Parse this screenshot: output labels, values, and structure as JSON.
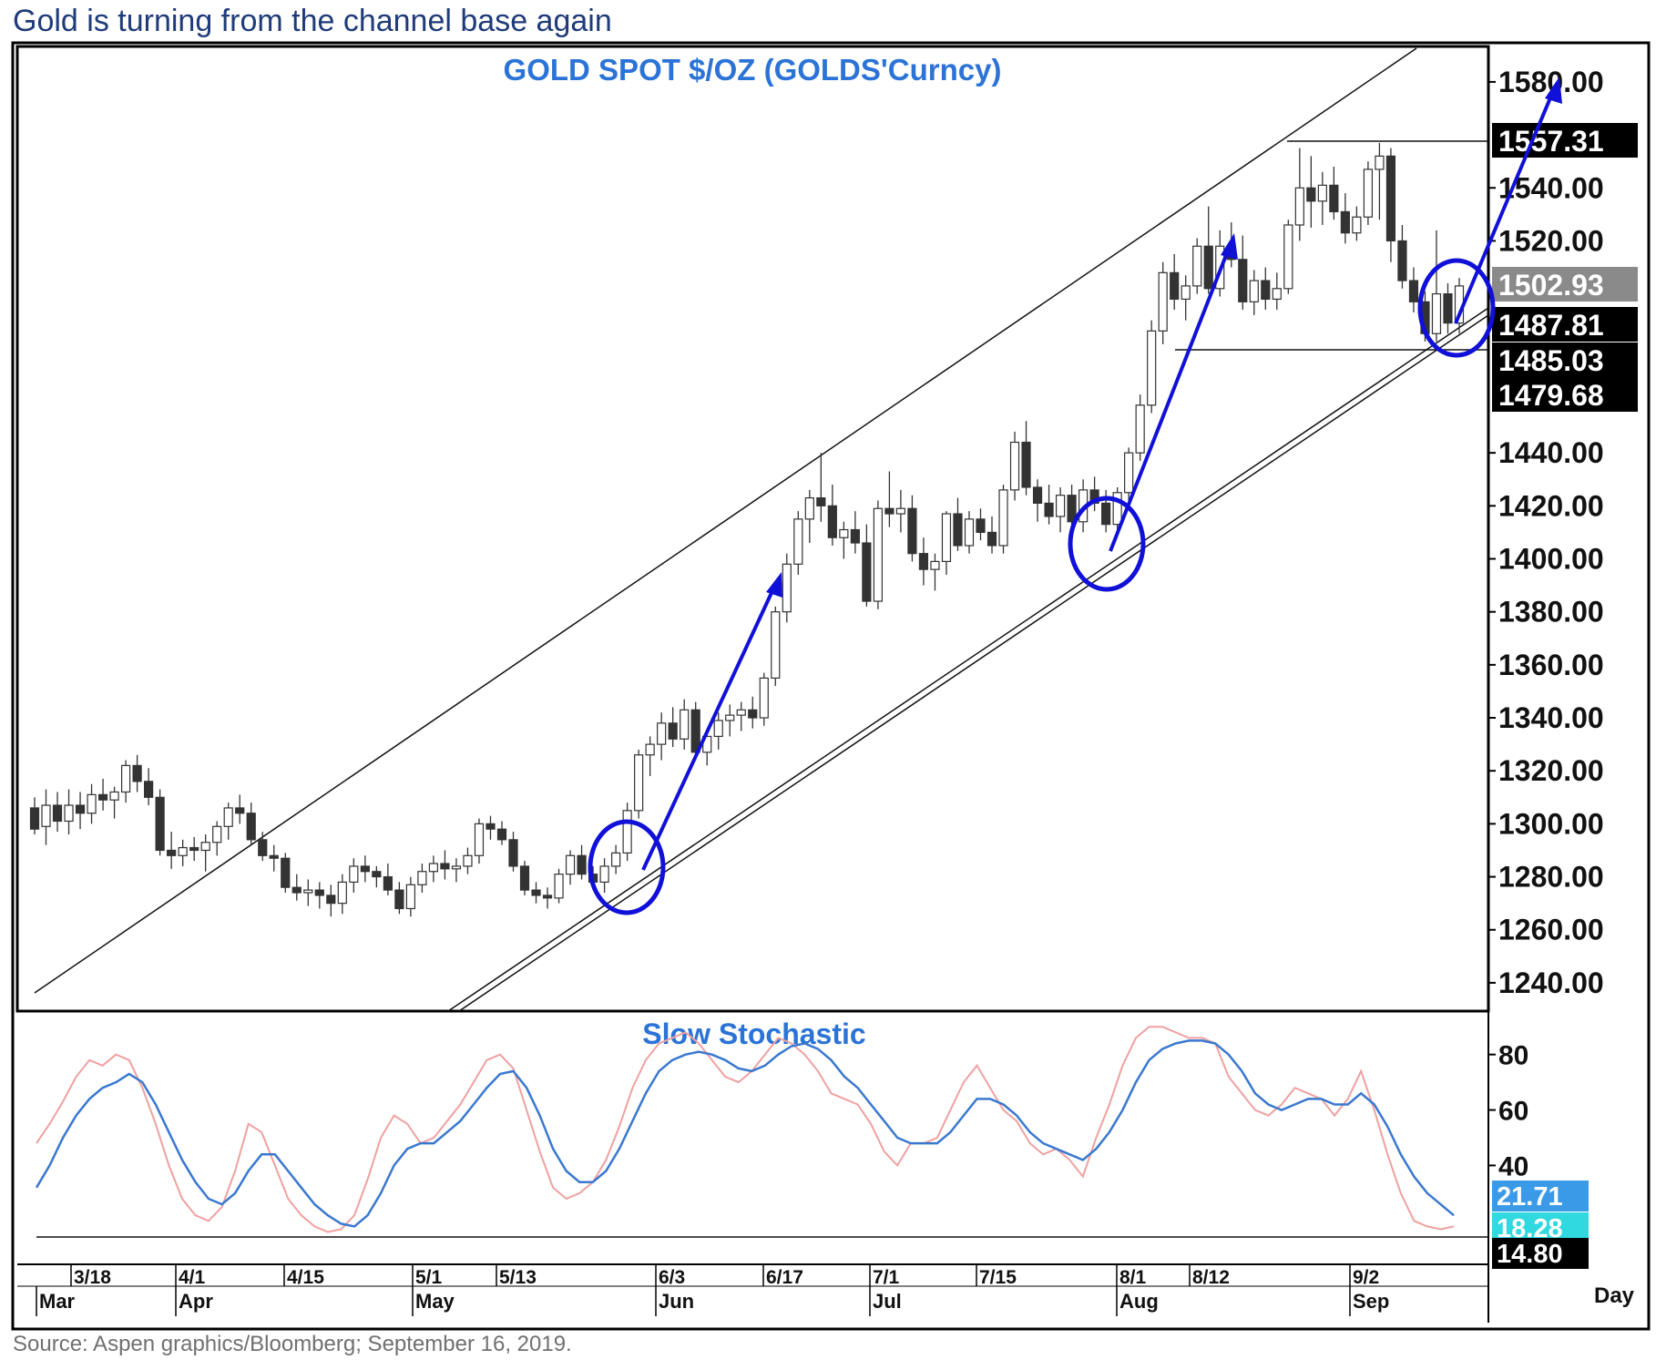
{
  "headline": "Gold is turning from the channel base again",
  "source": "Source: Aspen graphics/Bloomberg; September 16, 2019.",
  "colors": {
    "annotation_blue": "#1010d8",
    "title_blue": "#2b73d6",
    "stoch_k": "#f0a0a0",
    "stoch_d": "#3a78d0",
    "label_blue": "#3a9ae8",
    "label_cyan": "#30d8e0"
  },
  "chart_data": [
    {
      "type": "candlestick",
      "title": "GOLD  SPOT  $/OZ  (GOLDS'Curncy)",
      "ylim": [
        1230,
        1592
      ],
      "yticks": [
        "1240.00",
        "1260.00",
        "1280.00",
        "1300.00",
        "1320.00",
        "1340.00",
        "1360.00",
        "1380.00",
        "1400.00",
        "1420.00",
        "1440.00",
        "1520.00",
        "1540.00",
        "1580.00"
      ],
      "price_labels": [
        {
          "value": 1557.31,
          "text": "1557.31",
          "style": "black"
        },
        {
          "value": 1502.93,
          "text": "1502.93",
          "style": "gray"
        },
        {
          "value": 1487.81,
          "text": "1487.81",
          "style": "black"
        },
        {
          "value": 1485.03,
          "text": "1485.03",
          "style": "black"
        },
        {
          "value": 1479.68,
          "text": "1479.68",
          "style": "black"
        }
      ],
      "candles": [
        [
          1306,
          1310,
          1296,
          1298
        ],
        [
          1299,
          1313,
          1292,
          1307
        ],
        [
          1307,
          1312,
          1297,
          1301
        ],
        [
          1301,
          1313,
          1296,
          1307
        ],
        [
          1307,
          1312,
          1298,
          1304
        ],
        [
          1304,
          1315,
          1300,
          1311
        ],
        [
          1311,
          1317,
          1305,
          1309
        ],
        [
          1309,
          1314,
          1302,
          1312
        ],
        [
          1312,
          1324,
          1308,
          1322
        ],
        [
          1322,
          1326,
          1312,
          1316
        ],
        [
          1316,
          1321,
          1307,
          1310
        ],
        [
          1310,
          1313,
          1288,
          1290
        ],
        [
          1290,
          1297,
          1283,
          1288
        ],
        [
          1288,
          1294,
          1284,
          1291
        ],
        [
          1291,
          1295,
          1286,
          1290
        ],
        [
          1290,
          1296,
          1282,
          1293
        ],
        [
          1293,
          1301,
          1288,
          1299
        ],
        [
          1299,
          1308,
          1294,
          1306
        ],
        [
          1306,
          1311,
          1300,
          1304
        ],
        [
          1304,
          1308,
          1292,
          1294
        ],
        [
          1294,
          1297,
          1286,
          1288
        ],
        [
          1288,
          1292,
          1282,
          1287
        ],
        [
          1287,
          1289,
          1274,
          1276
        ],
        [
          1276,
          1281,
          1271,
          1274
        ],
        [
          1274,
          1279,
          1269,
          1275
        ],
        [
          1275,
          1278,
          1268,
          1273
        ],
        [
          1273,
          1277,
          1265,
          1270
        ],
        [
          1270,
          1281,
          1266,
          1278
        ],
        [
          1278,
          1287,
          1274,
          1284
        ],
        [
          1284,
          1288,
          1278,
          1282
        ],
        [
          1282,
          1284,
          1276,
          1280
        ],
        [
          1280,
          1285,
          1273,
          1275
        ],
        [
          1275,
          1278,
          1266,
          1268
        ],
        [
          1268,
          1280,
          1265,
          1277
        ],
        [
          1277,
          1285,
          1274,
          1282
        ],
        [
          1282,
          1288,
          1278,
          1285
        ],
        [
          1285,
          1290,
          1279,
          1283
        ],
        [
          1283,
          1287,
          1278,
          1284
        ],
        [
          1284,
          1291,
          1281,
          1288
        ],
        [
          1288,
          1302,
          1285,
          1300
        ],
        [
          1300,
          1303,
          1294,
          1298
        ],
        [
          1298,
          1301,
          1292,
          1294
        ],
        [
          1294,
          1297,
          1282,
          1284
        ],
        [
          1284,
          1286,
          1273,
          1275
        ],
        [
          1275,
          1278,
          1270,
          1273
        ],
        [
          1273,
          1276,
          1268,
          1272
        ],
        [
          1272,
          1283,
          1270,
          1281
        ],
        [
          1281,
          1290,
          1277,
          1288
        ],
        [
          1288,
          1292,
          1279,
          1281
        ],
        [
          1281,
          1284,
          1275,
          1278
        ],
        [
          1278,
          1287,
          1274,
          1284
        ],
        [
          1284,
          1292,
          1281,
          1289
        ],
        [
          1289,
          1308,
          1286,
          1305
        ],
        [
          1305,
          1328,
          1302,
          1326
        ],
        [
          1326,
          1333,
          1318,
          1330
        ],
        [
          1330,
          1342,
          1324,
          1338
        ],
        [
          1338,
          1344,
          1329,
          1332
        ],
        [
          1332,
          1347,
          1328,
          1343
        ],
        [
          1343,
          1346,
          1324,
          1327
        ],
        [
          1327,
          1336,
          1322,
          1333
        ],
        [
          1333,
          1342,
          1328,
          1339
        ],
        [
          1339,
          1345,
          1333,
          1341
        ],
        [
          1341,
          1346,
          1335,
          1343
        ],
        [
          1343,
          1348,
          1336,
          1340
        ],
        [
          1340,
          1357,
          1337,
          1355
        ],
        [
          1355,
          1382,
          1352,
          1380
        ],
        [
          1380,
          1402,
          1376,
          1398
        ],
        [
          1398,
          1418,
          1394,
          1415
        ],
        [
          1415,
          1426,
          1406,
          1423
        ],
        [
          1423,
          1440,
          1414,
          1420
        ],
        [
          1420,
          1428,
          1405,
          1408
        ],
        [
          1408,
          1414,
          1400,
          1411
        ],
        [
          1411,
          1418,
          1402,
          1406
        ],
        [
          1406,
          1413,
          1382,
          1384
        ],
        [
          1384,
          1422,
          1381,
          1419
        ],
        [
          1419,
          1433,
          1412,
          1417
        ],
        [
          1417,
          1426,
          1410,
          1419
        ],
        [
          1419,
          1424,
          1399,
          1402
        ],
        [
          1402,
          1408,
          1390,
          1396
        ],
        [
          1396,
          1402,
          1388,
          1399
        ],
        [
          1399,
          1418,
          1394,
          1417
        ],
        [
          1417,
          1423,
          1403,
          1405
        ],
        [
          1405,
          1418,
          1402,
          1415
        ],
        [
          1415,
          1419,
          1407,
          1410
        ],
        [
          1410,
          1416,
          1402,
          1405
        ],
        [
          1405,
          1428,
          1402,
          1426
        ],
        [
          1426,
          1448,
          1422,
          1444
        ],
        [
          1444,
          1452,
          1424,
          1427
        ],
        [
          1427,
          1430,
          1414,
          1421
        ],
        [
          1421,
          1428,
          1413,
          1416
        ],
        [
          1416,
          1427,
          1410,
          1424
        ],
        [
          1424,
          1428,
          1411,
          1414
        ],
        [
          1414,
          1430,
          1410,
          1426
        ],
        [
          1426,
          1431,
          1418,
          1421
        ],
        [
          1421,
          1426,
          1410,
          1413
        ],
        [
          1413,
          1427,
          1410,
          1425
        ],
        [
          1425,
          1442,
          1422,
          1440
        ],
        [
          1440,
          1462,
          1437,
          1458
        ],
        [
          1458,
          1490,
          1455,
          1486
        ],
        [
          1486,
          1512,
          1481,
          1508
        ],
        [
          1508,
          1515,
          1494,
          1498
        ],
        [
          1498,
          1507,
          1490,
          1503
        ],
        [
          1503,
          1521,
          1500,
          1518
        ],
        [
          1518,
          1533,
          1500,
          1502
        ],
        [
          1502,
          1524,
          1499,
          1518
        ],
        [
          1518,
          1527,
          1510,
          1513
        ],
        [
          1513,
          1522,
          1494,
          1497
        ],
        [
          1497,
          1509,
          1492,
          1505
        ],
        [
          1505,
          1510,
          1494,
          1498
        ],
        [
          1498,
          1508,
          1494,
          1502
        ],
        [
          1502,
          1528,
          1500,
          1526
        ],
        [
          1526,
          1555,
          1520,
          1540
        ],
        [
          1540,
          1552,
          1525,
          1535
        ],
        [
          1535,
          1546,
          1526,
          1541
        ],
        [
          1541,
          1548,
          1528,
          1531
        ],
        [
          1531,
          1538,
          1519,
          1523
        ],
        [
          1523,
          1533,
          1520,
          1529
        ],
        [
          1529,
          1550,
          1526,
          1547
        ],
        [
          1547,
          1557,
          1528,
          1552
        ],
        [
          1552,
          1555,
          1512,
          1520
        ],
        [
          1520,
          1526,
          1502,
          1505
        ],
        [
          1505,
          1510,
          1493,
          1497
        ],
        [
          1497,
          1501,
          1482,
          1485
        ],
        [
          1485,
          1524,
          1482,
          1500
        ],
        [
          1500,
          1504,
          1485,
          1489
        ],
        [
          1489,
          1506,
          1485,
          1503
        ]
      ]
    },
    {
      "type": "line",
      "title": "Slow  Stochastic",
      "ylim": [
        5,
        95
      ],
      "yticks": [
        "80",
        "60",
        "40"
      ],
      "value_labels": [
        {
          "value": 21.71,
          "text": "21.71",
          "style": "blue"
        },
        {
          "value": 18.28,
          "text": "18.28",
          "style": "cyan"
        },
        {
          "value": 14.8,
          "text": "14.80",
          "style": "black"
        }
      ],
      "series": [
        {
          "values": [
            48,
            55,
            63,
            72,
            78,
            76,
            80,
            78,
            68,
            55,
            40,
            28,
            22,
            20,
            25,
            38,
            55,
            52,
            40,
            28,
            22,
            18,
            16,
            17,
            22,
            35,
            50,
            58,
            55,
            48,
            50,
            56,
            62,
            70,
            78,
            80,
            75,
            60,
            45,
            32,
            28,
            30,
            34,
            42,
            54,
            68,
            78,
            84,
            86,
            88,
            84,
            78,
            72,
            70,
            74,
            80,
            86,
            84,
            80,
            74,
            66,
            64,
            62,
            55,
            45,
            40,
            48,
            48,
            50,
            60,
            70,
            76,
            68,
            60,
            56,
            48,
            44,
            46,
            42,
            36,
            50,
            62,
            76,
            86,
            90,
            90,
            88,
            86,
            86,
            84,
            72,
            66,
            60,
            58,
            62,
            68,
            66,
            64,
            58,
            64,
            74,
            60,
            44,
            30,
            20,
            18,
            17,
            18
          ]
        },
        {
          "values": [
            32,
            40,
            50,
            58,
            64,
            68,
            70,
            73,
            70,
            62,
            52,
            42,
            34,
            28,
            26,
            30,
            38,
            44,
            44,
            38,
            32,
            26,
            22,
            19,
            18,
            22,
            30,
            40,
            46,
            48,
            48,
            52,
            56,
            62,
            68,
            73,
            74,
            68,
            58,
            46,
            38,
            34,
            34,
            38,
            46,
            56,
            66,
            74,
            78,
            80,
            81,
            80,
            78,
            75,
            74,
            76,
            80,
            83,
            84,
            82,
            78,
            72,
            68,
            62,
            56,
            50,
            48,
            48,
            48,
            52,
            58,
            64,
            64,
            62,
            58,
            52,
            48,
            46,
            44,
            42,
            46,
            52,
            60,
            70,
            78,
            82,
            84,
            85,
            85,
            84,
            80,
            74,
            66,
            62,
            60,
            62,
            64,
            64,
            62,
            62,
            66,
            62,
            54,
            44,
            36,
            30,
            26,
            22
          ]
        }
      ]
    }
  ],
  "x_axis": {
    "day_ticks": [
      "3/18",
      "4/1",
      "4/15",
      "5/1",
      "5/13",
      "6/3",
      "6/17",
      "7/1",
      "7/15",
      "8/1",
      "8/12",
      "9/2"
    ],
    "month_ticks": [
      "Mar",
      "Apr",
      "May",
      "Jun",
      "Jul",
      "Aug",
      "Sep"
    ],
    "unit": "Day"
  }
}
